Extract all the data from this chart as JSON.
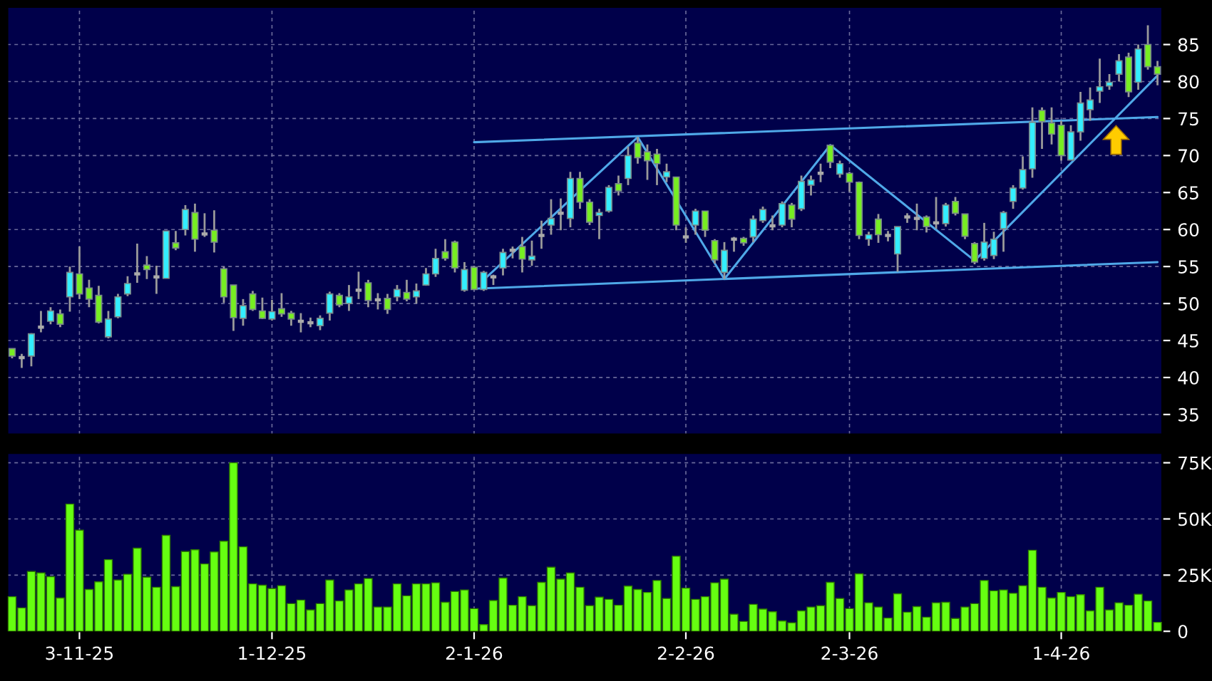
{
  "chart_data": [
    {
      "type": "candlestick",
      "categories": [
        null,
        null,
        null,
        null,
        null,
        null,
        null,
        null,
        null,
        null,
        null,
        null,
        null,
        null,
        null,
        null,
        null,
        null,
        null,
        null,
        null,
        null,
        null,
        null,
        null,
        null,
        null,
        null,
        null,
        null,
        null,
        null,
        null,
        null,
        null,
        null,
        null,
        null,
        null,
        null,
        null,
        null,
        null,
        null,
        null,
        null,
        null,
        null,
        null,
        null,
        null,
        null,
        null,
        null,
        null,
        null,
        null,
        null,
        null,
        null,
        null,
        null,
        null,
        null,
        null,
        null,
        null,
        null,
        null,
        null,
        null,
        null,
        null,
        null,
        null,
        null,
        null,
        null,
        null,
        null,
        null,
        null,
        null,
        null,
        null,
        null,
        null,
        null,
        null,
        null,
        null,
        null,
        null,
        null,
        null,
        null,
        null,
        null,
        null,
        null,
        null,
        null,
        null,
        null,
        null,
        null,
        null,
        null,
        null,
        null,
        null,
        null,
        null,
        null,
        null,
        null,
        null,
        null,
        null,
        null
      ],
      "ohlc": [
        [
          43.9,
          43.9,
          42.6,
          42.9
        ],
        [
          42.7,
          43.2,
          41.3,
          42.7
        ],
        [
          42.9,
          46.0,
          41.5,
          45.9
        ],
        [
          46.8,
          49.0,
          46.1,
          46.8
        ],
        [
          47.6,
          49.5,
          47.2,
          49.0
        ],
        [
          48.6,
          49.2,
          46.8,
          47.2
        ],
        [
          50.9,
          55.0,
          48.9,
          54.2
        ],
        [
          54.0,
          57.7,
          50.6,
          51.3
        ],
        [
          52.1,
          53.2,
          49.5,
          50.6
        ],
        [
          51.1,
          52.4,
          47.3,
          47.5
        ],
        [
          45.5,
          49.0,
          45.3,
          47.9
        ],
        [
          48.2,
          51.3,
          48.0,
          50.9
        ],
        [
          51.3,
          53.7,
          51.0,
          52.7
        ],
        [
          54.0,
          58.1,
          52.8,
          54.0
        ],
        [
          55.2,
          56.4,
          53.3,
          54.6
        ],
        [
          53.6,
          55.1,
          51.3,
          53.6
        ],
        [
          53.4,
          59.8,
          53.4,
          59.8
        ],
        [
          58.2,
          59.8,
          57.2,
          57.5
        ],
        [
          60.0,
          63.3,
          59.2,
          62.7
        ],
        [
          62.3,
          63.5,
          57.0,
          58.7
        ],
        [
          59.4,
          62.2,
          59.0,
          59.4
        ],
        [
          59.9,
          62.6,
          56.9,
          58.3
        ],
        [
          54.7,
          55.0,
          50.1,
          50.9
        ],
        [
          52.5,
          52.5,
          46.3,
          48.1
        ],
        [
          48.0,
          50.6,
          47.0,
          49.7
        ],
        [
          51.3,
          51.7,
          49.0,
          49.2
        ],
        [
          49.0,
          50.8,
          47.9,
          48.0
        ],
        [
          47.9,
          50.5,
          47.7,
          48.9
        ],
        [
          49.3,
          51.4,
          48.2,
          48.6
        ],
        [
          48.7,
          49.0,
          47.0,
          47.9
        ],
        [
          47.6,
          48.7,
          46.1,
          47.6
        ],
        [
          47.4,
          48.1,
          46.8,
          47.4
        ],
        [
          47.0,
          48.4,
          46.4,
          48.0
        ],
        [
          48.7,
          51.6,
          47.7,
          51.3
        ],
        [
          51.1,
          51.4,
          49.5,
          49.8
        ],
        [
          50.0,
          52.5,
          49.0,
          50.9
        ],
        [
          51.8,
          54.3,
          50.6,
          51.8
        ],
        [
          52.8,
          53.2,
          49.5,
          50.4
        ],
        [
          50.5,
          51.4,
          49.2,
          50.5
        ],
        [
          50.7,
          51.3,
          48.6,
          49.2
        ],
        [
          50.9,
          52.5,
          50.3,
          51.9
        ],
        [
          51.5,
          53.2,
          50.3,
          50.6
        ],
        [
          50.9,
          52.7,
          50.0,
          51.7
        ],
        [
          52.5,
          54.8,
          52.4,
          54.0
        ],
        [
          54.0,
          57.4,
          53.6,
          56.1
        ],
        [
          57.0,
          58.7,
          55.8,
          56.1
        ],
        [
          58.3,
          58.5,
          54.2,
          54.8
        ],
        [
          51.8,
          55.6,
          51.6,
          54.6
        ],
        [
          54.9,
          55.1,
          51.8,
          51.9
        ],
        [
          51.9,
          54.4,
          51.7,
          54.2
        ],
        [
          53.6,
          53.9,
          52.5,
          53.6
        ],
        [
          54.8,
          57.4,
          53.8,
          56.9
        ],
        [
          57.2,
          57.7,
          56.1,
          57.2
        ],
        [
          57.7,
          59.0,
          54.2,
          56.0
        ],
        [
          55.9,
          58.5,
          55.1,
          56.4
        ],
        [
          59.2,
          61.2,
          57.4,
          59.2
        ],
        [
          60.6,
          64.1,
          59.3,
          61.5
        ],
        [
          62.2,
          64.2,
          59.9,
          62.2
        ],
        [
          61.5,
          67.8,
          60.3,
          66.9
        ],
        [
          66.9,
          67.8,
          62.8,
          63.7
        ],
        [
          63.7,
          64.1,
          60.6,
          61.0
        ],
        [
          61.9,
          62.8,
          58.7,
          62.3
        ],
        [
          62.5,
          66.0,
          62.3,
          65.7
        ],
        [
          66.2,
          67.3,
          64.6,
          65.2
        ],
        [
          66.9,
          71.2,
          66.0,
          70.0
        ],
        [
          71.7,
          72.5,
          68.9,
          69.7
        ],
        [
          70.5,
          71.5,
          66.7,
          69.3
        ],
        [
          70.2,
          70.9,
          66.0,
          68.9
        ],
        [
          67.1,
          68.9,
          66.4,
          67.8
        ],
        [
          67.1,
          67.1,
          59.9,
          60.6
        ],
        [
          59.0,
          60.3,
          58.2,
          59.0
        ],
        [
          60.6,
          62.8,
          59.3,
          62.5
        ],
        [
          62.5,
          62.5,
          59.0,
          59.9
        ],
        [
          58.5,
          58.7,
          55.4,
          55.9
        ],
        [
          54.2,
          58.3,
          53.3,
          57.2
        ],
        [
          58.7,
          59.0,
          57.0,
          58.7
        ],
        [
          58.8,
          59.0,
          57.8,
          58.2
        ],
        [
          59.0,
          61.9,
          58.3,
          61.4
        ],
        [
          61.2,
          63.1,
          60.9,
          62.7
        ],
        [
          60.5,
          61.9,
          59.9,
          60.5
        ],
        [
          60.6,
          63.8,
          60.3,
          63.5
        ],
        [
          63.3,
          63.6,
          60.3,
          61.4
        ],
        [
          62.8,
          67.3,
          62.5,
          66.5
        ],
        [
          66.0,
          67.3,
          64.6,
          66.7
        ],
        [
          67.6,
          68.9,
          66.4,
          67.6
        ],
        [
          71.4,
          71.5,
          68.3,
          69.1
        ],
        [
          67.5,
          69.3,
          67.0,
          68.9
        ],
        [
          67.6,
          67.8,
          65.1,
          66.4
        ],
        [
          66.4,
          66.5,
          58.7,
          59.2
        ],
        [
          58.7,
          59.7,
          57.8,
          59.3
        ],
        [
          61.4,
          62.1,
          58.2,
          59.3
        ],
        [
          59.2,
          59.8,
          58.4,
          59.2
        ],
        [
          56.7,
          60.4,
          54.3,
          60.4
        ],
        [
          61.7,
          62.2,
          60.9,
          61.7
        ],
        [
          61.5,
          63.5,
          59.9,
          61.5
        ],
        [
          61.7,
          61.9,
          59.6,
          60.4
        ],
        [
          60.9,
          64.4,
          60.1,
          60.9
        ],
        [
          60.8,
          63.6,
          60.4,
          63.3
        ],
        [
          63.8,
          64.4,
          61.9,
          62.2
        ],
        [
          62.1,
          62.1,
          58.7,
          59.1
        ],
        [
          58.1,
          58.3,
          55.3,
          55.6
        ],
        [
          56.1,
          60.9,
          55.8,
          58.3
        ],
        [
          56.5,
          59.7,
          56.0,
          58.7
        ],
        [
          60.1,
          62.5,
          57.0,
          62.3
        ],
        [
          63.8,
          66.0,
          62.8,
          65.6
        ],
        [
          65.6,
          69.9,
          65.4,
          68.1
        ],
        [
          68.2,
          76.5,
          67.0,
          74.5
        ],
        [
          76.1,
          76.5,
          70.9,
          74.6
        ],
        [
          74.4,
          76.5,
          71.5,
          72.9
        ],
        [
          74.1,
          74.7,
          69.3,
          70.0
        ],
        [
          69.4,
          74.1,
          69.4,
          73.2
        ],
        [
          73.2,
          78.6,
          72.0,
          77.1
        ],
        [
          76.2,
          79.2,
          74.7,
          77.5
        ],
        [
          78.7,
          83.1,
          77.1,
          79.3
        ],
        [
          79.4,
          81.0,
          78.9,
          79.9
        ],
        [
          81.0,
          83.7,
          80.0,
          82.8
        ],
        [
          83.3,
          83.9,
          77.9,
          78.6
        ],
        [
          79.9,
          85.0,
          78.9,
          84.4
        ],
        [
          85.0,
          87.6,
          81.6,
          82.0
        ],
        [
          82.0,
          82.8,
          79.5,
          81.0
        ]
      ],
      "colors": [
        "#77ee22",
        "#aaaaaa",
        "#33eeff",
        "#aaaaaa",
        "#33eeff",
        "#77ee22",
        "#33eeff",
        "#77ee22",
        "#77ee22",
        "#77ee22",
        "#33eeff",
        "#33eeff",
        "#33eeff",
        "#aaaaaa",
        "#77ee22",
        "#aaaaaa",
        "#33eeff",
        "#77ee22",
        "#33eeff",
        "#77ee22",
        "#aaaaaa",
        "#77ee22",
        "#77ee22",
        "#77ee22",
        "#33eeff",
        "#77ee22",
        "#77ee22",
        "#33eeff",
        "#77ee22",
        "#77ee22",
        "#aaaaaa",
        "#aaaaaa",
        "#33eeff",
        "#33eeff",
        "#77ee22",
        "#33eeff",
        "#aaaaaa",
        "#77ee22",
        "#aaaaaa",
        "#77ee22",
        "#33eeff",
        "#77ee22",
        "#33eeff",
        "#33eeff",
        "#33eeff",
        "#77ee22",
        "#77ee22",
        "#33eeff",
        "#77ee22",
        "#33eeff",
        "#aaaaaa",
        "#33eeff",
        "#aaaaaa",
        "#77ee22",
        "#33eeff",
        "#aaaaaa",
        "#33eeff",
        "#aaaaaa",
        "#33eeff",
        "#77ee22",
        "#77ee22",
        "#33eeff",
        "#33eeff",
        "#77ee22",
        "#33eeff",
        "#77ee22",
        "#77ee22",
        "#77ee22",
        "#33eeff",
        "#77ee22",
        "#aaaaaa",
        "#33eeff",
        "#77ee22",
        "#77ee22",
        "#33eeff",
        "#aaaaaa",
        "#77ee22",
        "#33eeff",
        "#33eeff",
        "#aaaaaa",
        "#33eeff",
        "#77ee22",
        "#33eeff",
        "#33eeff",
        "#aaaaaa",
        "#77ee22",
        "#33eeff",
        "#77ee22",
        "#77ee22",
        "#33eeff",
        "#77ee22",
        "#aaaaaa",
        "#33eeff",
        "#aaaaaa",
        "#aaaaaa",
        "#77ee22",
        "#aaaaaa",
        "#33eeff",
        "#77ee22",
        "#77ee22",
        "#77ee22",
        "#33eeff",
        "#33eeff",
        "#33eeff",
        "#33eeff",
        "#33eeff",
        "#33eeff",
        "#77ee22",
        "#77ee22",
        "#77ee22",
        "#33eeff",
        "#33eeff",
        "#33eeff",
        "#33eeff",
        "#33eeff",
        "#33eeff",
        "#77ee22",
        "#33eeff",
        "#77ee22",
        "#77ee22"
      ],
      "series": [
        {
          "type": "line",
          "color": "#4fa8e8",
          "values": [
            null,
            null,
            null,
            null,
            null,
            null,
            null,
            null,
            null,
            null,
            null,
            null,
            null,
            null,
            null,
            null,
            null,
            null,
            null,
            null,
            null,
            null,
            null,
            null,
            null,
            null,
            null,
            null,
            null,
            null,
            null,
            null,
            null,
            null,
            null,
            null,
            null,
            null,
            null,
            null,
            null,
            null,
            null,
            null,
            null,
            null,
            null,
            null,
            71.8,
            null,
            null,
            null,
            null,
            null,
            null,
            null,
            null,
            null,
            null,
            null,
            null,
            null,
            null,
            null,
            null,
            null,
            null,
            null,
            null,
            null,
            null,
            null,
            null,
            null,
            null,
            null,
            null,
            null,
            null,
            null,
            null,
            null,
            null,
            null,
            null,
            null,
            null,
            null,
            null,
            null,
            null,
            null,
            null,
            null,
            null,
            null,
            null,
            null,
            null,
            null,
            null,
            null,
            null,
            null,
            null,
            null,
            null,
            null,
            null,
            null,
            null,
            null,
            null,
            null,
            null,
            null,
            null,
            null,
            null,
            75.2
          ]
        },
        {
          "type": "line",
          "color": "#4fa8e8",
          "values": [
            null,
            null,
            null,
            null,
            null,
            null,
            null,
            null,
            null,
            null,
            null,
            null,
            null,
            null,
            null,
            null,
            null,
            null,
            null,
            null,
            null,
            null,
            null,
            null,
            null,
            null,
            null,
            null,
            null,
            null,
            null,
            null,
            null,
            null,
            null,
            null,
            null,
            null,
            null,
            null,
            null,
            null,
            null,
            null,
            null,
            null,
            null,
            null,
            52.0,
            null,
            null,
            null,
            null,
            null,
            null,
            null,
            null,
            null,
            null,
            null,
            null,
            null,
            null,
            null,
            null,
            null,
            null,
            null,
            null,
            null,
            null,
            null,
            null,
            null,
            null,
            null,
            null,
            null,
            null,
            null,
            null,
            null,
            null,
            null,
            null,
            null,
            null,
            null,
            null,
            null,
            null,
            null,
            null,
            null,
            null,
            null,
            null,
            null,
            null,
            null,
            null,
            null,
            null,
            null,
            null,
            null,
            null,
            null,
            null,
            null,
            null,
            null,
            null,
            null,
            null,
            null,
            null,
            null,
            null,
            55.6
          ]
        },
        {
          "type": "line",
          "color": "#4fa8e8",
          "values": [
            null,
            null,
            null,
            null,
            null,
            null,
            null,
            null,
            null,
            null,
            null,
            null,
            null,
            null,
            null,
            null,
            null,
            null,
            null,
            null,
            null,
            null,
            null,
            null,
            null,
            null,
            null,
            null,
            null,
            null,
            null,
            null,
            null,
            null,
            null,
            null,
            null,
            null,
            null,
            null,
            null,
            null,
            null,
            null,
            null,
            null,
            null,
            null,
            null,
            53.2,
            null,
            null,
            null,
            null,
            null,
            null,
            null,
            null,
            null,
            null,
            null,
            null,
            null,
            null,
            null,
            72.5,
            null,
            null,
            null,
            null,
            null,
            null,
            null,
            null,
            53.3,
            null,
            null,
            null,
            null,
            null,
            null,
            null,
            null,
            null,
            null,
            71.4,
            null,
            null,
            null,
            null,
            null,
            null,
            null,
            null,
            null,
            null,
            null,
            null,
            null,
            null,
            55.8,
            null,
            null,
            null,
            null,
            null,
            null,
            null,
            null,
            null,
            null,
            null,
            null,
            null,
            null,
            null,
            null,
            null,
            null,
            80.8
          ]
        }
      ],
      "ylim": [
        32.3,
        90.1
      ],
      "yticks": [
        35,
        40,
        45,
        50,
        55,
        60,
        65,
        70,
        75,
        80,
        85
      ],
      "grid": true,
      "tick_labels": "y"
    },
    {
      "type": "bar",
      "categories": [
        null,
        null,
        null,
        null,
        null,
        null,
        null,
        "3-11-25",
        null,
        null,
        null,
        null,
        null,
        null,
        null,
        null,
        null,
        null,
        null,
        null,
        null,
        null,
        null,
        null,
        null,
        null,
        null,
        "1-12-25",
        null,
        null,
        null,
        null,
        null,
        null,
        null,
        null,
        null,
        null,
        null,
        null,
        null,
        null,
        null,
        null,
        null,
        null,
        null,
        null,
        "2-1-26",
        null,
        null,
        null,
        null,
        null,
        null,
        null,
        null,
        null,
        null,
        null,
        null,
        null,
        null,
        null,
        null,
        null,
        null,
        null,
        null,
        null,
        "2-2-26",
        null,
        null,
        null,
        null,
        null,
        null,
        null,
        null,
        null,
        null,
        null,
        null,
        null,
        null,
        null,
        null,
        "2-3-26",
        null,
        null,
        null,
        null,
        null,
        null,
        null,
        null,
        null,
        null,
        null,
        null,
        null,
        null,
        null,
        null,
        null,
        null,
        null,
        null,
        null,
        "1-4-26",
        null,
        null,
        null,
        null,
        null,
        null,
        null,
        null,
        null,
        null
      ],
      "values": [
        15400,
        10400,
        26600,
        26000,
        24300,
        14800,
        56600,
        45000,
        18600,
        22000,
        31900,
        22800,
        25400,
        37000,
        24100,
        19600,
        42700,
        19900,
        35500,
        36300,
        30000,
        35300,
        40100,
        75000,
        37600,
        21100,
        20500,
        19000,
        20300,
        12300,
        13900,
        9500,
        12300,
        22800,
        13500,
        18400,
        21100,
        23500,
        10800,
        10800,
        21100,
        15800,
        21100,
        21100,
        21600,
        12900,
        17700,
        18400,
        10100,
        3000,
        13700,
        23700,
        11600,
        15400,
        11400,
        21800,
        28500,
        23200,
        26000,
        19600,
        11400,
        15200,
        14200,
        11600,
        20100,
        18600,
        17300,
        22600,
        14600,
        33400,
        19200,
        14200,
        15400,
        21600,
        23200,
        7600,
        4400,
        12000,
        9900,
        8700,
        4600,
        3800,
        9100,
        10800,
        11400,
        21800,
        14600,
        10100,
        25600,
        12700,
        10800,
        5900,
        16700,
        8500,
        11000,
        6300,
        12700,
        12900,
        5700,
        10800,
        12300,
        22600,
        18000,
        18400,
        16900,
        20300,
        36100,
        19600,
        14800,
        17300,
        15400,
        16300,
        9100,
        19600,
        9500,
        12700,
        11600,
        16500,
        13500,
        4000
      ],
      "color": "#66ff11",
      "ylim": [
        0,
        79400
      ],
      "yticks": [
        0,
        {
          "value": 25000,
          "label": "25K"
        },
        {
          "value": 50000,
          "label": "50K"
        },
        {
          "value": 75000,
          "label": "75K"
        }
      ],
      "grid": true
    }
  ]
}
